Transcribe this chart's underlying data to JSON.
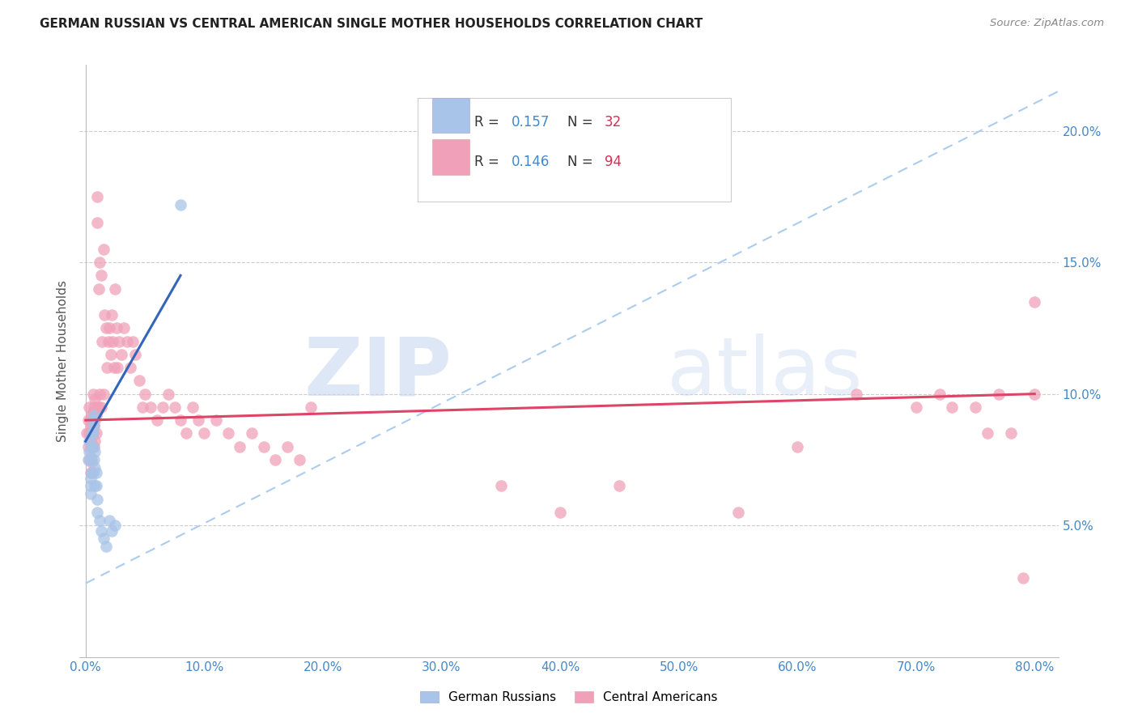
{
  "title": "GERMAN RUSSIAN VS CENTRAL AMERICAN SINGLE MOTHER HOUSEHOLDS CORRELATION CHART",
  "source": "Source: ZipAtlas.com",
  "ylabel": "Single Mother Households",
  "xlim": [
    0.0,
    0.82
  ],
  "ylim": [
    0.0,
    0.225
  ],
  "color_blue": "#a8c4e8",
  "color_pink": "#f0a0b8",
  "trendline_blue": "#3366bb",
  "trendline_pink": "#dd4466",
  "trendline_dashed": "#aaccee",
  "german_russian_x": [
    0.002,
    0.003,
    0.003,
    0.004,
    0.004,
    0.004,
    0.005,
    0.005,
    0.005,
    0.005,
    0.006,
    0.006,
    0.006,
    0.006,
    0.007,
    0.007,
    0.007,
    0.008,
    0.008,
    0.008,
    0.009,
    0.009,
    0.01,
    0.01,
    0.012,
    0.013,
    0.015,
    0.017,
    0.02,
    0.022,
    0.025,
    0.08
  ],
  "german_russian_y": [
    0.075,
    0.082,
    0.078,
    0.068,
    0.065,
    0.062,
    0.085,
    0.08,
    0.075,
    0.07,
    0.09,
    0.085,
    0.08,
    0.07,
    0.092,
    0.088,
    0.075,
    0.078,
    0.072,
    0.065,
    0.07,
    0.065,
    0.06,
    0.055,
    0.052,
    0.048,
    0.045,
    0.042,
    0.052,
    0.048,
    0.05,
    0.172
  ],
  "central_american_x": [
    0.001,
    0.002,
    0.002,
    0.003,
    0.003,
    0.003,
    0.004,
    0.004,
    0.004,
    0.004,
    0.005,
    0.005,
    0.005,
    0.005,
    0.006,
    0.006,
    0.006,
    0.007,
    0.007,
    0.007,
    0.008,
    0.008,
    0.008,
    0.009,
    0.009,
    0.01,
    0.01,
    0.01,
    0.011,
    0.011,
    0.012,
    0.012,
    0.013,
    0.013,
    0.014,
    0.015,
    0.015,
    0.016,
    0.017,
    0.018,
    0.019,
    0.02,
    0.021,
    0.022,
    0.023,
    0.024,
    0.025,
    0.026,
    0.027,
    0.028,
    0.03,
    0.032,
    0.035,
    0.038,
    0.04,
    0.042,
    0.045,
    0.048,
    0.05,
    0.055,
    0.06,
    0.065,
    0.07,
    0.075,
    0.08,
    0.085,
    0.09,
    0.095,
    0.1,
    0.11,
    0.12,
    0.13,
    0.14,
    0.15,
    0.16,
    0.17,
    0.18,
    0.19,
    0.35,
    0.4,
    0.45,
    0.55,
    0.6,
    0.65,
    0.7,
    0.72,
    0.73,
    0.75,
    0.76,
    0.77,
    0.78,
    0.79,
    0.8,
    0.8
  ],
  "central_american_y": [
    0.085,
    0.09,
    0.08,
    0.095,
    0.085,
    0.075,
    0.088,
    0.082,
    0.076,
    0.07,
    0.092,
    0.086,
    0.08,
    0.074,
    0.1,
    0.093,
    0.085,
    0.095,
    0.088,
    0.08,
    0.098,
    0.09,
    0.082,
    0.092,
    0.085,
    0.175,
    0.165,
    0.095,
    0.14,
    0.095,
    0.15,
    0.1,
    0.145,
    0.095,
    0.12,
    0.155,
    0.1,
    0.13,
    0.125,
    0.11,
    0.12,
    0.125,
    0.115,
    0.13,
    0.12,
    0.11,
    0.14,
    0.125,
    0.11,
    0.12,
    0.115,
    0.125,
    0.12,
    0.11,
    0.12,
    0.115,
    0.105,
    0.095,
    0.1,
    0.095,
    0.09,
    0.095,
    0.1,
    0.095,
    0.09,
    0.085,
    0.095,
    0.09,
    0.085,
    0.09,
    0.085,
    0.08,
    0.085,
    0.08,
    0.075,
    0.08,
    0.075,
    0.095,
    0.065,
    0.055,
    0.065,
    0.055,
    0.08,
    0.1,
    0.095,
    0.1,
    0.095,
    0.095,
    0.085,
    0.1,
    0.085,
    0.03,
    0.1,
    0.135
  ]
}
